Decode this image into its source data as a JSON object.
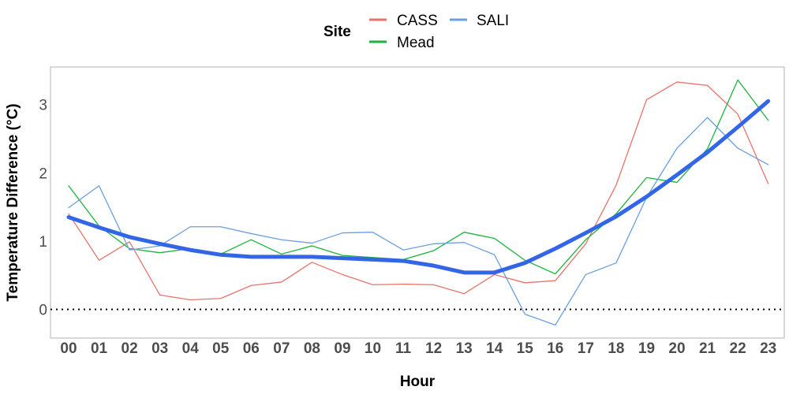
{
  "chart_data": {
    "type": "line",
    "xlabel": "Hour",
    "ylabel": "Temperature Difference (°C)",
    "categories": [
      "00",
      "01",
      "02",
      "03",
      "04",
      "05",
      "06",
      "07",
      "08",
      "09",
      "10",
      "11",
      "12",
      "13",
      "14",
      "15",
      "16",
      "17",
      "18",
      "19",
      "20",
      "21",
      "22",
      "23"
    ],
    "ylim": [
      -0.42,
      3.55
    ],
    "yticks": [
      0,
      1,
      2,
      3
    ],
    "reference_line": 0,
    "grid": false,
    "legend": {
      "title": "Site",
      "position": "top",
      "entries": [
        "CASS",
        "SALI",
        "Mead"
      ]
    },
    "series": [
      {
        "name": "CASS",
        "color": "#e8736b",
        "values": [
          1.4,
          0.72,
          0.99,
          0.21,
          0.14,
          0.16,
          0.35,
          0.4,
          0.69,
          0.51,
          0.36,
          0.37,
          0.36,
          0.23,
          0.51,
          0.39,
          0.42,
          0.96,
          1.82,
          3.07,
          3.33,
          3.28,
          2.86,
          1.84
        ]
      },
      {
        "name": "Mead",
        "color": "#1bb33a",
        "values": [
          1.81,
          1.22,
          0.89,
          0.83,
          0.89,
          0.81,
          1.02,
          0.81,
          0.93,
          0.79,
          0.76,
          0.73,
          0.86,
          1.13,
          1.04,
          0.72,
          0.52,
          1.02,
          1.4,
          1.93,
          1.86,
          2.35,
          3.36,
          2.77
        ]
      },
      {
        "name": "SALI",
        "color": "#6a9fe0",
        "values": [
          1.49,
          1.81,
          0.87,
          0.93,
          1.21,
          1.21,
          1.11,
          1.02,
          0.97,
          1.12,
          1.13,
          0.87,
          0.96,
          0.98,
          0.8,
          -0.07,
          -0.23,
          0.51,
          0.68,
          1.64,
          2.36,
          2.81,
          2.36,
          2.12
        ]
      },
      {
        "name": "",
        "role": "smoothed trend",
        "color": "#3366e6",
        "values": [
          1.35,
          1.2,
          1.06,
          0.96,
          0.87,
          0.8,
          0.77,
          0.77,
          0.77,
          0.75,
          0.73,
          0.71,
          0.64,
          0.54,
          0.54,
          0.68,
          0.89,
          1.12,
          1.36,
          1.65,
          1.97,
          2.3,
          2.67,
          3.05
        ]
      }
    ]
  }
}
